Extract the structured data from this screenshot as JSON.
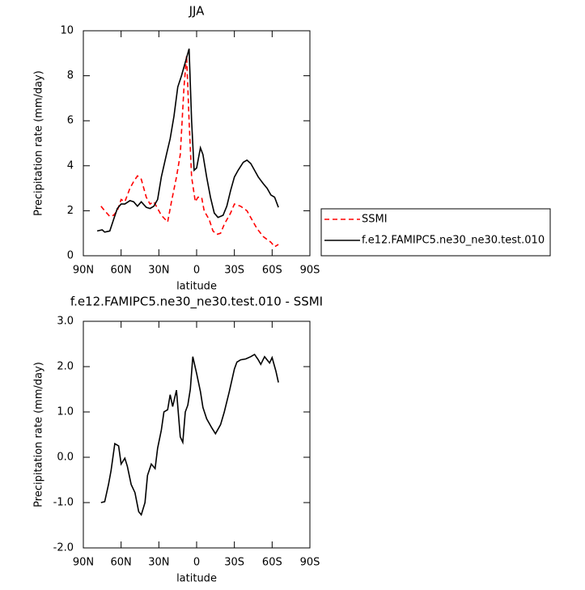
{
  "chart_data": [
    {
      "type": "line",
      "title": "JJA",
      "xlabel": "latitude",
      "ylabel": "Precipitation rate (mm/day)",
      "xlim": [
        90,
        -90
      ],
      "xticks": [
        {
          "value": 90,
          "label": "90N"
        },
        {
          "value": 60,
          "label": "60N"
        },
        {
          "value": 30,
          "label": "30N"
        },
        0,
        {
          "value": -30,
          "label": "30S"
        },
        {
          "value": -60,
          "label": "60S"
        },
        {
          "value": -90,
          "label": "90S"
        }
      ],
      "ylim": [
        0,
        10
      ],
      "yticks": [
        0,
        2,
        4,
        6,
        8,
        10
      ],
      "legend": "right",
      "series": [
        {
          "name": "SSMI",
          "color": "#ff0000",
          "dashed": true,
          "x": [
            76,
            73,
            69,
            66,
            63,
            60,
            57,
            53,
            50,
            47,
            44,
            40,
            37,
            34,
            31,
            28,
            23,
            20,
            16,
            13,
            10,
            8,
            6,
            4,
            1,
            -1,
            -4,
            -6,
            -10,
            -13,
            -16,
            -19,
            -22,
            -27,
            -30,
            -35,
            -40,
            -44,
            -48,
            -53,
            -59,
            -62,
            -65
          ],
          "values": [
            2.2,
            2.0,
            1.75,
            1.8,
            2.0,
            2.5,
            2.4,
            3.0,
            3.3,
            3.55,
            3.4,
            2.6,
            2.3,
            2.4,
            2.1,
            1.8,
            1.5,
            2.4,
            3.5,
            4.5,
            7.5,
            8.9,
            6.0,
            3.5,
            2.4,
            2.6,
            2.6,
            2.0,
            1.6,
            1.1,
            0.95,
            1.0,
            1.4,
            1.9,
            2.3,
            2.2,
            2.0,
            1.6,
            1.2,
            0.85,
            0.6,
            0.4,
            0.5
          ]
        },
        {
          "name": "f.e12.FAMIPC5.ne30_ne30.test.010",
          "color": "#000000",
          "dashed": false,
          "x": [
            79,
            75,
            73,
            69,
            66,
            63,
            60,
            57,
            53,
            50,
            47,
            44,
            40,
            37,
            34,
            31,
            28,
            24,
            21,
            18,
            15,
            12,
            8,
            6,
            4,
            2,
            0,
            -3,
            -5,
            -8,
            -11,
            -14,
            -17,
            -21,
            -24,
            -27,
            -30,
            -33,
            -37,
            -40,
            -43,
            -46,
            -49,
            -53,
            -56,
            -59,
            -62,
            -65
          ],
          "values": [
            1.1,
            1.15,
            1.05,
            1.1,
            1.6,
            2.1,
            2.3,
            2.3,
            2.45,
            2.4,
            2.2,
            2.4,
            2.15,
            2.1,
            2.2,
            2.5,
            3.5,
            4.5,
            5.2,
            6.2,
            7.5,
            8.0,
            8.8,
            9.2,
            6.0,
            3.8,
            3.9,
            4.8,
            4.5,
            3.5,
            2.6,
            1.9,
            1.7,
            1.8,
            2.2,
            2.9,
            3.5,
            3.8,
            4.15,
            4.25,
            4.1,
            3.8,
            3.5,
            3.2,
            3.0,
            2.7,
            2.6,
            2.15
          ]
        }
      ]
    },
    {
      "type": "line",
      "title": "f.e12.FAMIPC5.ne30_ne30.test.010 - SSMI",
      "xlabel": "latitude",
      "ylabel": "Precipitation rate (mm/day)",
      "xlim": [
        90,
        -90
      ],
      "xticks": [
        {
          "value": 90,
          "label": "90N"
        },
        {
          "value": 60,
          "label": "60N"
        },
        {
          "value": 30,
          "label": "30N"
        },
        0,
        {
          "value": -30,
          "label": "30S"
        },
        {
          "value": -60,
          "label": "60S"
        },
        {
          "value": -90,
          "label": "90S"
        }
      ],
      "ylim": [
        -2,
        3
      ],
      "yticks": [
        {
          "value": -2,
          "label": "-2.0"
        },
        {
          "value": -1,
          "label": "-1.0"
        },
        {
          "value": 0,
          "label": "0.0"
        },
        {
          "value": 1,
          "label": "1.0"
        },
        {
          "value": 2,
          "label": "2.0"
        },
        {
          "value": 3,
          "label": "3.0"
        }
      ],
      "series": [
        {
          "color": "#000000",
          "dashed": false,
          "x": [
            76,
            73,
            70,
            68,
            65,
            62,
            60,
            57,
            55,
            52,
            49,
            46,
            44,
            41,
            39,
            36,
            33,
            31,
            28,
            26,
            23,
            21,
            19,
            16,
            13,
            11,
            9,
            7,
            5,
            3,
            0,
            -3,
            -5,
            -8,
            -12,
            -15,
            -19,
            -22,
            -26,
            -30,
            -32,
            -35,
            -39,
            -43,
            -46,
            -49,
            -51,
            -54,
            -58,
            -60,
            -63,
            -65
          ],
          "values": [
            -1.0,
            -0.98,
            -0.6,
            -0.3,
            0.3,
            0.25,
            -0.15,
            -0.02,
            -0.2,
            -0.6,
            -0.78,
            -1.2,
            -1.27,
            -1.0,
            -0.4,
            -0.15,
            -0.25,
            0.2,
            0.6,
            1.0,
            1.05,
            1.38,
            1.12,
            1.48,
            0.45,
            0.33,
            1.0,
            1.15,
            1.5,
            2.22,
            1.85,
            1.45,
            1.1,
            0.85,
            0.65,
            0.52,
            0.72,
            1.0,
            1.45,
            1.95,
            2.1,
            2.15,
            2.17,
            2.22,
            2.27,
            2.15,
            2.05,
            2.22,
            2.08,
            2.2,
            1.9,
            1.65
          ]
        }
      ]
    }
  ]
}
